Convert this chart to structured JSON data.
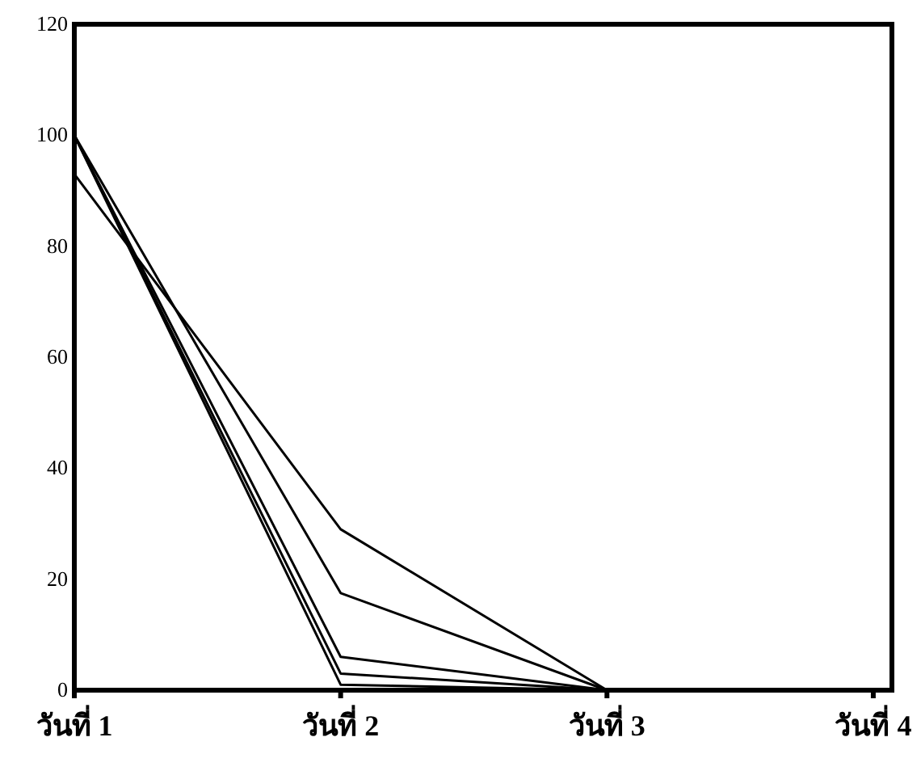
{
  "chart_data": {
    "type": "line",
    "categories": [
      "วันที่ 1",
      "วันที่ 2",
      "วันที่ 3",
      "วันที่ 4"
    ],
    "series": [
      {
        "color": "#000000",
        "values": [
          93,
          29,
          0,
          0
        ]
      },
      {
        "color": "#000000",
        "values": [
          100,
          17.5,
          0,
          0
        ]
      },
      {
        "color": "#000000",
        "values": [
          100,
          6,
          0,
          0
        ]
      },
      {
        "color": "#000000",
        "values": [
          100,
          3,
          0,
          0
        ]
      },
      {
        "color": "#000000",
        "values": [
          100,
          1,
          0,
          0
        ]
      }
    ],
    "ylim": [
      0,
      120
    ],
    "yticks": [
      0,
      20,
      40,
      60,
      80,
      100,
      120
    ],
    "marker": "none",
    "line_style": "solid"
  }
}
